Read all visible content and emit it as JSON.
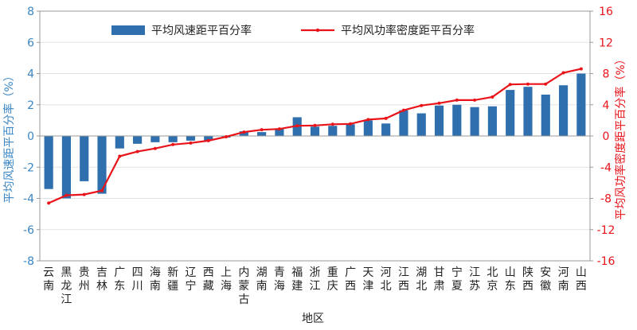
{
  "chart_data": {
    "type": "bar+line",
    "xlabel": "地区",
    "ylabel_left": "平均风速距平百分率（%）",
    "ylabel_right": "平均风功率密度距平百分率（%）",
    "ylim_left": [
      -8,
      8
    ],
    "yticks_left": [
      -8,
      -6,
      -4,
      -2,
      0,
      2,
      4,
      6,
      8
    ],
    "ylim_right": [
      -16,
      16
    ],
    "yticks_right": [
      -16,
      -12,
      -8,
      -4,
      0,
      4,
      8,
      12,
      16
    ],
    "grid": "horizontal",
    "legend_position": "top",
    "categories": [
      "云南",
      "黑龙江",
      "贵州",
      "吉林",
      "广东",
      "四川",
      "海南",
      "新疆",
      "辽宁",
      "西藏",
      "上海",
      "内蒙古",
      "湖南",
      "青海",
      "福建",
      "浙江",
      "重庆",
      "广西",
      "天津",
      "河北",
      "江西",
      "湖北",
      "甘肃",
      "宁夏",
      "江苏",
      "北京",
      "山东",
      "陕西",
      "安徽",
      "河南",
      "山西"
    ],
    "series": [
      {
        "name": "平均风速距平百分率",
        "type": "bar",
        "axis": "left",
        "color": "#2f6fad",
        "values": [
          -3.4,
          -4.0,
          -2.9,
          -3.7,
          -0.8,
          -0.5,
          -0.4,
          -0.4,
          -0.3,
          -0.3,
          -0.1,
          0.3,
          0.25,
          0.45,
          1.2,
          0.6,
          0.65,
          0.75,
          1.0,
          0.8,
          1.65,
          1.45,
          1.95,
          2.0,
          1.85,
          1.9,
          2.95,
          3.15,
          2.65,
          3.25,
          4.0
        ]
      },
      {
        "name": "平均风功率密度距平百分率",
        "type": "line",
        "axis": "right",
        "color": "#e8141a",
        "values": [
          -8.6,
          -7.6,
          -7.5,
          -7.0,
          -2.6,
          -2.0,
          -1.6,
          -1.1,
          -0.9,
          -0.6,
          -0.1,
          0.5,
          0.8,
          0.9,
          1.3,
          1.35,
          1.5,
          1.55,
          2.1,
          2.25,
          3.3,
          3.9,
          4.2,
          4.6,
          4.6,
          5.0,
          6.6,
          6.65,
          6.65,
          8.1,
          8.6
        ]
      }
    ]
  }
}
